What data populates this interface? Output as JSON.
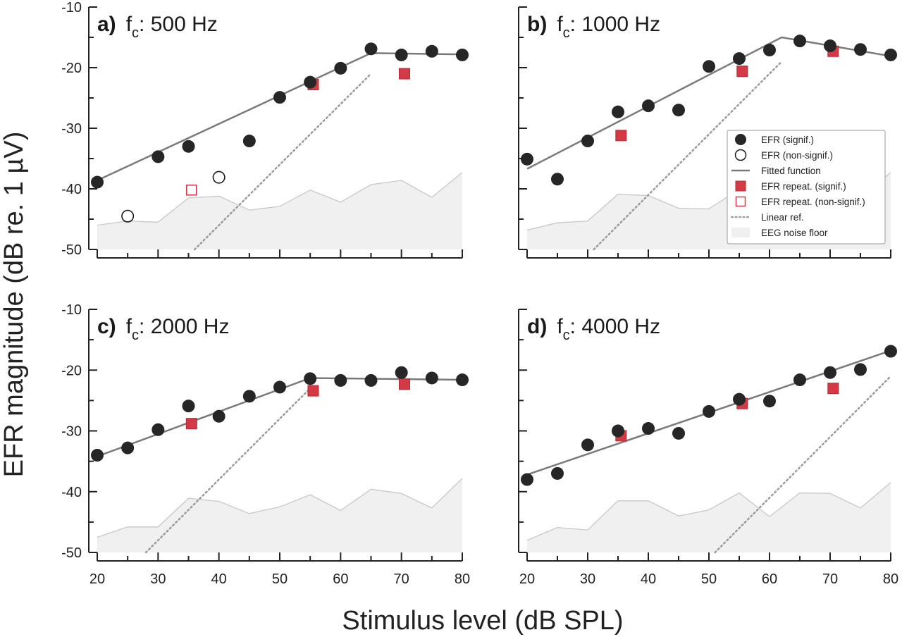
{
  "figure": {
    "ylabel": "EFR magnitude (dB re. 1 µV)",
    "xlabel": "Stimulus level (dB SPL)"
  },
  "legend": {
    "placement": "right side of panel b",
    "items": [
      {
        "key": "efr_sig",
        "label": "EFR (signif.)"
      },
      {
        "key": "efr_nonsig",
        "label": "EFR (non-signif.)"
      },
      {
        "key": "fit",
        "label": "Fitted function"
      },
      {
        "key": "rep_sig",
        "label": "EFR repeat. (signif.)"
      },
      {
        "key": "rep_nonsig",
        "label": "EFR repeat. (non-signif.)"
      },
      {
        "key": "linear",
        "label": "Linear ref."
      },
      {
        "key": "noise",
        "label": "EEG noise floor"
      }
    ]
  },
  "colors": {
    "efr": "#262626",
    "repeat": "#d43a45",
    "fit": "#7a7a7a",
    "linear_ref": "#9a9a9a",
    "noise_fill": "#f0f0f0",
    "noise_line": "#c8c8c8"
  },
  "chart_data": [
    {
      "type": "scatter",
      "panel": "a",
      "letter": "a)",
      "fc_label": "500 Hz",
      "xlim": [
        20,
        80
      ],
      "ylim": [
        -50,
        -10
      ],
      "xticks": [
        20,
        30,
        40,
        50,
        60,
        70,
        80
      ],
      "yticks": [
        -10,
        -20,
        -30,
        -40,
        -50
      ],
      "show_xtick_labels": false,
      "show_ytick_labels": true,
      "efr_signif": [
        [
          20,
          -38.9
        ],
        [
          30,
          -34.7
        ],
        [
          35,
          -33.0
        ],
        [
          45,
          -32.1
        ],
        [
          50,
          -24.9
        ],
        [
          55,
          -22.4
        ],
        [
          60,
          -20.1
        ],
        [
          65,
          -16.9
        ],
        [
          70,
          -17.9
        ],
        [
          75,
          -17.3
        ],
        [
          80,
          -17.9
        ]
      ],
      "efr_nonsignif": [
        [
          25,
          -44.5
        ],
        [
          40,
          -38.1
        ]
      ],
      "repeat_signif": [
        [
          55.5,
          -22.8
        ],
        [
          70.5,
          -21.0
        ]
      ],
      "repeat_nonsignif": [
        [
          35.5,
          -40.2
        ]
      ],
      "fit": [
        [
          20,
          -38.6
        ],
        [
          65,
          -17.6
        ],
        [
          80,
          -17.8
        ]
      ],
      "linear_ref": [
        [
          36,
          -50
        ],
        [
          65,
          -21
        ]
      ],
      "noise_floor": [
        [
          20,
          -46.0
        ],
        [
          25,
          -45.3
        ],
        [
          30,
          -45.5
        ],
        [
          35,
          -41.5
        ],
        [
          40,
          -41.2
        ],
        [
          45,
          -43.5
        ],
        [
          50,
          -42.9
        ],
        [
          55,
          -40.2
        ],
        [
          60,
          -42.2
        ],
        [
          65,
          -39.3
        ],
        [
          70,
          -38.6
        ],
        [
          75,
          -41.4
        ],
        [
          80,
          -37.3
        ]
      ]
    },
    {
      "type": "scatter",
      "panel": "b",
      "letter": "b)",
      "fc_label": "1000 Hz",
      "xlim": [
        20,
        80
      ],
      "ylim": [
        -50,
        -10
      ],
      "xticks": [
        20,
        30,
        40,
        50,
        60,
        70,
        80
      ],
      "yticks": [
        -10,
        -20,
        -30,
        -40,
        -50
      ],
      "show_xtick_labels": false,
      "show_ytick_labels": false,
      "efr_signif": [
        [
          20,
          -35.1
        ],
        [
          25,
          -38.4
        ],
        [
          30,
          -32.1
        ],
        [
          35,
          -27.3
        ],
        [
          40,
          -26.3
        ],
        [
          45,
          -27.0
        ],
        [
          50,
          -19.8
        ],
        [
          55,
          -18.5
        ],
        [
          60,
          -17.1
        ],
        [
          65,
          -15.6
        ],
        [
          70,
          -16.4
        ],
        [
          75,
          -17.0
        ],
        [
          80,
          -17.9
        ]
      ],
      "efr_nonsignif": [],
      "repeat_signif": [
        [
          35.5,
          -31.2
        ],
        [
          55.5,
          -20.6
        ],
        [
          70.5,
          -17.3
        ]
      ],
      "repeat_nonsignif": [],
      "fit": [
        [
          20,
          -36.7
        ],
        [
          62,
          -15.0
        ],
        [
          80,
          -18.1
        ]
      ],
      "linear_ref": [
        [
          31,
          -50
        ],
        [
          62,
          -19
        ]
      ],
      "noise_floor": [
        [
          20,
          -46.8
        ],
        [
          25,
          -45.6
        ],
        [
          30,
          -45.3
        ],
        [
          35,
          -40.9
        ],
        [
          40,
          -41.1
        ],
        [
          45,
          -43.2
        ],
        [
          50,
          -43.3
        ],
        [
          55,
          -40.1
        ],
        [
          60,
          -42.0
        ],
        [
          65,
          -39.5
        ],
        [
          70,
          -38.5
        ],
        [
          75,
          -41.4
        ],
        [
          80,
          -37.3
        ]
      ]
    },
    {
      "type": "scatter",
      "panel": "c",
      "letter": "c)",
      "fc_label": "2000 Hz",
      "xlim": [
        20,
        80
      ],
      "ylim": [
        -50,
        -10
      ],
      "xticks": [
        20,
        30,
        40,
        50,
        60,
        70,
        80
      ],
      "yticks": [
        -10,
        -20,
        -30,
        -40,
        -50
      ],
      "show_xtick_labels": true,
      "show_ytick_labels": true,
      "efr_signif": [
        [
          20,
          -34.0
        ],
        [
          25,
          -32.8
        ],
        [
          30,
          -29.8
        ],
        [
          35,
          -25.9
        ],
        [
          40,
          -27.6
        ],
        [
          45,
          -24.3
        ],
        [
          50,
          -22.8
        ],
        [
          55,
          -21.4
        ],
        [
          60,
          -21.7
        ],
        [
          65,
          -21.7
        ],
        [
          70,
          -20.4
        ],
        [
          75,
          -21.3
        ],
        [
          80,
          -21.6
        ]
      ],
      "efr_nonsignif": [],
      "repeat_signif": [
        [
          35.5,
          -28.8
        ],
        [
          55.5,
          -23.4
        ],
        [
          70.5,
          -22.3
        ]
      ],
      "repeat_nonsignif": [],
      "fit": [
        [
          20,
          -34.2
        ],
        [
          55,
          -21.3
        ],
        [
          80,
          -21.6
        ]
      ],
      "linear_ref": [
        [
          28,
          -50
        ],
        [
          55,
          -23
        ]
      ],
      "noise_floor": [
        [
          20,
          -47.5
        ],
        [
          25,
          -45.8
        ],
        [
          30,
          -45.8
        ],
        [
          35,
          -41.1
        ],
        [
          40,
          -41.6
        ],
        [
          45,
          -43.6
        ],
        [
          50,
          -42.5
        ],
        [
          55,
          -40.5
        ],
        [
          60,
          -43.1
        ],
        [
          65,
          -39.6
        ],
        [
          70,
          -40.3
        ],
        [
          75,
          -42.7
        ],
        [
          80,
          -37.8
        ]
      ]
    },
    {
      "type": "scatter",
      "panel": "d",
      "letter": "d)",
      "fc_label": "4000 Hz",
      "xlim": [
        20,
        80
      ],
      "ylim": [
        -50,
        -10
      ],
      "xticks": [
        20,
        30,
        40,
        50,
        60,
        70,
        80
      ],
      "yticks": [
        -10,
        -20,
        -30,
        -40,
        -50
      ],
      "show_xtick_labels": true,
      "show_ytick_labels": false,
      "efr_signif": [
        [
          20,
          -38.0
        ],
        [
          25,
          -37.0
        ],
        [
          30,
          -32.3
        ],
        [
          35,
          -30.0
        ],
        [
          40,
          -29.6
        ],
        [
          45,
          -30.4
        ],
        [
          50,
          -26.8
        ],
        [
          55,
          -24.8
        ],
        [
          60,
          -25.1
        ],
        [
          65,
          -21.6
        ],
        [
          70,
          -20.4
        ],
        [
          75,
          -19.9
        ],
        [
          80,
          -16.9
        ]
      ],
      "efr_nonsignif": [],
      "repeat_signif": [
        [
          35.5,
          -30.8
        ],
        [
          55.5,
          -25.5
        ],
        [
          70.5,
          -23.0
        ]
      ],
      "repeat_nonsignif": [],
      "fit": [
        [
          20,
          -37.2
        ],
        [
          80,
          -16.8
        ]
      ],
      "linear_ref": [
        [
          51,
          -50
        ],
        [
          80,
          -21
        ]
      ],
      "noise_floor": [
        [
          20,
          -48.0
        ],
        [
          25,
          -45.9
        ],
        [
          30,
          -46.3
        ],
        [
          35,
          -41.5
        ],
        [
          40,
          -41.5
        ],
        [
          45,
          -44.0
        ],
        [
          50,
          -43.0
        ],
        [
          55,
          -40.2
        ],
        [
          60,
          -44.1
        ],
        [
          65,
          -40.2
        ],
        [
          70,
          -40.3
        ],
        [
          75,
          -42.7
        ],
        [
          80,
          -38.5
        ]
      ]
    }
  ]
}
